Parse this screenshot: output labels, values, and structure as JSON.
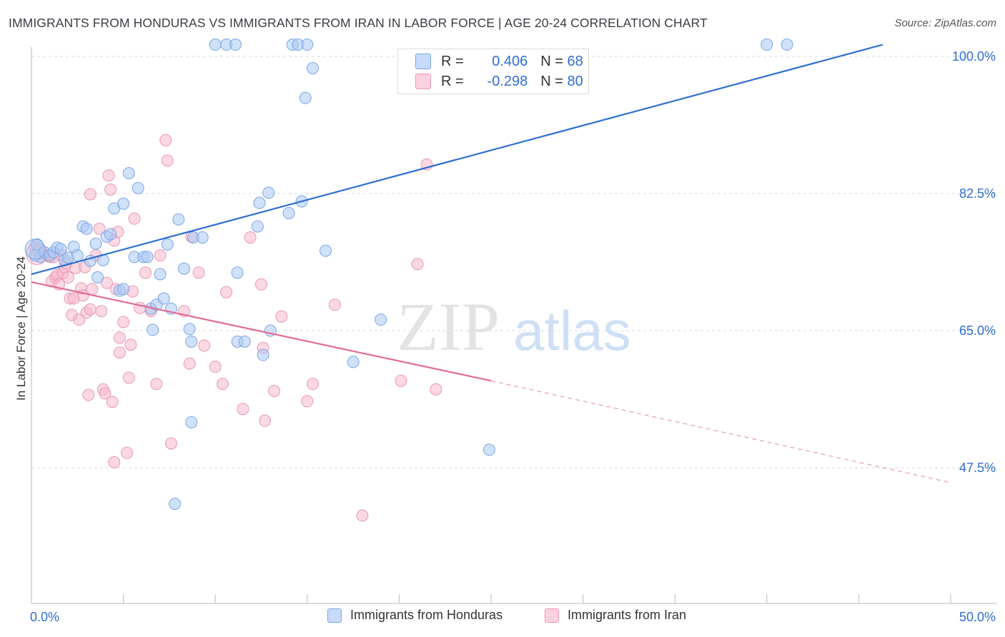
{
  "header": {
    "title": "IMMIGRANTS FROM HONDURAS VS IMMIGRANTS FROM IRAN IN LABOR FORCE | AGE 20-24 CORRELATION CHART",
    "source": "Source: ZipAtlas.com"
  },
  "watermark": {
    "zip": "ZIP",
    "atlas": "atlas"
  },
  "legend": {
    "rows": [
      {
        "r_label": "R =",
        "r_value": "0.406",
        "n_label": "N =",
        "n_value": "68",
        "color": "#a9c8f5"
      },
      {
        "r_label": "R =",
        "r_value": "-0.298",
        "n_label": "N =",
        "n_value": "80",
        "color": "#f7b8cb"
      }
    ]
  },
  "colors": {
    "blue_fill": "#a9c8f5",
    "blue_stroke": "#7aa6e3",
    "blue_line": "#2e6fd0",
    "pink_fill": "#f7b8cb",
    "pink_stroke": "#e899b3",
    "pink_line": "#e06b96",
    "tick_label": "#2e6fd0",
    "grid": "#d9d9d9"
  },
  "chart_data": {
    "type": "scatter",
    "title": "IMMIGRANTS FROM HONDURAS VS IMMIGRANTS FROM IRAN IN LABOR FORCE | AGE 20-24 CORRELATION CHART",
    "xlabel": "",
    "ylabel": "In Labor Force | Age 20-24",
    "xlim": [
      0,
      50
    ],
    "ylim": [
      32.5,
      102
    ],
    "x_tick_labels": [
      "0.0%",
      "50.0%"
    ],
    "y_ticks": [
      47.5,
      65.0,
      82.5,
      100.0
    ],
    "y_tick_labels": [
      "47.5%",
      "65.0%",
      "82.5%",
      "100.0%"
    ],
    "grid": true,
    "legend_position": "top-center",
    "series": [
      {
        "name": "Immigrants from Honduras",
        "R": 0.406,
        "N": 68,
        "trend": {
          "x0": 0,
          "y0": 72.2,
          "x1": 46.3,
          "y1": 101.5
        },
        "points": [
          [
            0.3,
            76.0
          ],
          [
            0.5,
            74.4
          ],
          [
            0.7,
            75.0
          ],
          [
            1.0,
            74.6
          ],
          [
            1.2,
            75.0
          ],
          [
            1.4,
            75.6
          ],
          [
            1.6,
            75.4
          ],
          [
            1.8,
            74.0
          ],
          [
            2.0,
            74.3
          ],
          [
            2.3,
            75.7
          ],
          [
            2.5,
            74.6
          ],
          [
            2.8,
            78.3
          ],
          [
            3.0,
            78.0
          ],
          [
            3.2,
            73.9
          ],
          [
            3.5,
            76.1
          ],
          [
            3.6,
            71.8
          ],
          [
            3.9,
            74.0
          ],
          [
            4.1,
            77.0
          ],
          [
            4.3,
            77.3
          ],
          [
            4.5,
            80.6
          ],
          [
            4.8,
            70.1
          ],
          [
            5.0,
            70.3
          ],
          [
            5.0,
            81.2
          ],
          [
            5.3,
            85.1
          ],
          [
            5.6,
            74.4
          ],
          [
            5.8,
            83.2
          ],
          [
            6.1,
            74.4
          ],
          [
            6.3,
            74.4
          ],
          [
            6.5,
            67.8
          ],
          [
            6.6,
            65.1
          ],
          [
            6.8,
            68.3
          ],
          [
            7.0,
            72.2
          ],
          [
            7.2,
            69.1
          ],
          [
            7.4,
            76.0
          ],
          [
            7.6,
            67.8
          ],
          [
            8.0,
            79.2
          ],
          [
            8.3,
            72.9
          ],
          [
            8.6,
            65.2
          ],
          [
            8.8,
            76.9
          ],
          [
            9.3,
            76.9
          ],
          [
            8.7,
            53.3
          ],
          [
            7.8,
            42.9
          ],
          [
            8.7,
            63.6
          ],
          [
            10.0,
            101.5
          ],
          [
            10.6,
            101.5
          ],
          [
            11.1,
            101.5
          ],
          [
            11.2,
            72.4
          ],
          [
            11.2,
            63.6
          ],
          [
            11.6,
            63.6
          ],
          [
            12.3,
            78.3
          ],
          [
            12.4,
            81.3
          ],
          [
            12.6,
            61.9
          ],
          [
            12.9,
            82.6
          ],
          [
            13.0,
            65.0
          ],
          [
            14.0,
            80.0
          ],
          [
            14.2,
            101.5
          ],
          [
            14.5,
            101.5
          ],
          [
            14.7,
            81.5
          ],
          [
            15.0,
            101.5
          ],
          [
            15.3,
            98.5
          ],
          [
            14.9,
            94.7
          ],
          [
            16.0,
            75.2
          ],
          [
            17.5,
            61.0
          ],
          [
            19.0,
            66.4
          ],
          [
            24.9,
            49.8
          ],
          [
            40.0,
            101.5
          ],
          [
            41.1,
            101.5
          ],
          [
            0.2,
            74.6
          ]
        ]
      },
      {
        "name": "Immigrants from Iran",
        "R": -0.298,
        "N": 80,
        "trend": {
          "x0": 0,
          "y0": 71.2,
          "x1": 25.0,
          "y1": 58.6,
          "dash_x1": 50,
          "dash_y1": 45.6
        },
        "points": [
          [
            0.2,
            75.7
          ],
          [
            0.4,
            75.0
          ],
          [
            0.6,
            74.8
          ],
          [
            0.8,
            74.6
          ],
          [
            1.0,
            74.4
          ],
          [
            1.1,
            71.3
          ],
          [
            1.3,
            71.8
          ],
          [
            1.4,
            72.1
          ],
          [
            1.5,
            70.9
          ],
          [
            1.7,
            72.3
          ],
          [
            1.8,
            73.1
          ],
          [
            1.9,
            73.6
          ],
          [
            2.0,
            71.8
          ],
          [
            2.1,
            69.1
          ],
          [
            2.2,
            67.0
          ],
          [
            2.3,
            69.1
          ],
          [
            2.4,
            73.0
          ],
          [
            2.6,
            66.4
          ],
          [
            2.7,
            70.4
          ],
          [
            2.8,
            69.5
          ],
          [
            2.9,
            73.1
          ],
          [
            3.0,
            67.3
          ],
          [
            3.2,
            82.4
          ],
          [
            3.2,
            67.7
          ],
          [
            3.3,
            70.3
          ],
          [
            3.1,
            56.8
          ],
          [
            3.5,
            74.6
          ],
          [
            3.7,
            78.0
          ],
          [
            3.8,
            67.5
          ],
          [
            3.9,
            57.5
          ],
          [
            4.0,
            57.0
          ],
          [
            4.1,
            71.1
          ],
          [
            4.2,
            84.8
          ],
          [
            4.3,
            83.0
          ],
          [
            4.4,
            55.9
          ],
          [
            4.5,
            76.5
          ],
          [
            4.5,
            48.2
          ],
          [
            4.6,
            70.3
          ],
          [
            4.7,
            77.6
          ],
          [
            4.8,
            64.1
          ],
          [
            4.8,
            62.2
          ],
          [
            5.0,
            66.1
          ],
          [
            5.2,
            49.4
          ],
          [
            5.3,
            59.0
          ],
          [
            5.4,
            63.2
          ],
          [
            5.5,
            70.0
          ],
          [
            5.6,
            79.3
          ],
          [
            5.9,
            67.9
          ],
          [
            6.2,
            72.4
          ],
          [
            6.5,
            67.5
          ],
          [
            6.8,
            58.2
          ],
          [
            7.0,
            74.6
          ],
          [
            7.3,
            89.3
          ],
          [
            7.4,
            86.7
          ],
          [
            7.6,
            50.6
          ],
          [
            8.3,
            67.5
          ],
          [
            8.6,
            60.8
          ],
          [
            8.7,
            77.0
          ],
          [
            9.1,
            72.4
          ],
          [
            9.4,
            63.1
          ],
          [
            10.0,
            60.4
          ],
          [
            10.4,
            58.2
          ],
          [
            10.6,
            69.9
          ],
          [
            11.5,
            55.0
          ],
          [
            11.9,
            76.9
          ],
          [
            12.5,
            70.9
          ],
          [
            12.6,
            62.8
          ],
          [
            12.7,
            53.5
          ],
          [
            13.2,
            57.3
          ],
          [
            13.6,
            66.8
          ],
          [
            15.0,
            56.0
          ],
          [
            15.3,
            58.2
          ],
          [
            16.5,
            68.3
          ],
          [
            18.0,
            41.4
          ],
          [
            20.1,
            58.6
          ],
          [
            21.0,
            73.5
          ],
          [
            22.0,
            57.5
          ],
          [
            21.5,
            86.2
          ],
          [
            0.9,
            74.6
          ],
          [
            1.2,
            74.4
          ],
          [
            1.6,
            74.7
          ]
        ]
      }
    ]
  },
  "bottom_legend": {
    "items": [
      {
        "label": "Immigrants from Honduras"
      },
      {
        "label": "Immigrants from Iran"
      }
    ]
  }
}
